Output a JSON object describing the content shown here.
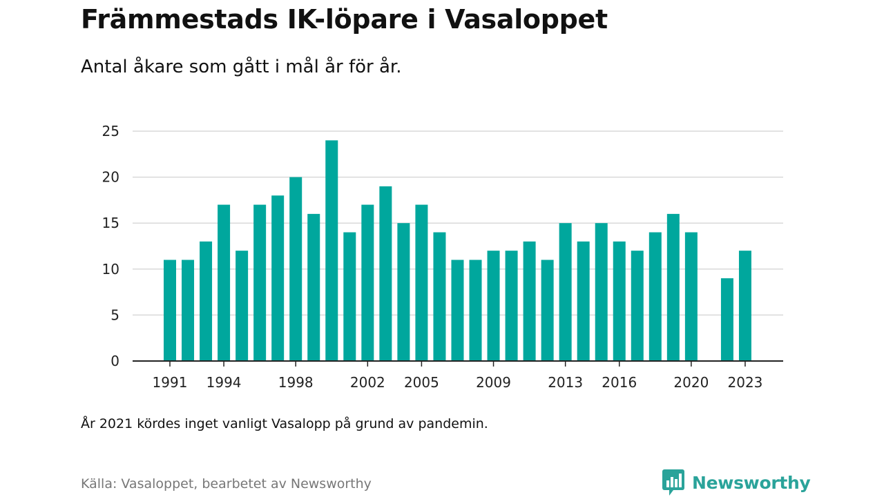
{
  "header": {
    "title": "Främmestads IK-löpare i Vasaloppet",
    "subtitle": "Antal åkare som gått i mål år för år."
  },
  "footer": {
    "footnote": "År 2021 kördes inget vanligt Vasalopp på grund av pandemin.",
    "source": "Källa: Vasaloppet, bearbetet av Newsworthy",
    "brand": "Newsworthy"
  },
  "colors": {
    "bar": "#00a79d",
    "grid": "#d9d9d9",
    "axis": "#222222",
    "brand": "#2aa39a"
  },
  "chart_data": {
    "type": "bar",
    "title": "Främmestads IK-löpare i Vasaloppet",
    "subtitle": "Antal åkare som gått i mål år för år.",
    "xlabel": "",
    "ylabel": "",
    "categories": [
      1991,
      1992,
      1993,
      1994,
      1995,
      1996,
      1997,
      1998,
      1999,
      2000,
      2001,
      2002,
      2003,
      2004,
      2005,
      2006,
      2007,
      2008,
      2009,
      2010,
      2011,
      2012,
      2013,
      2014,
      2015,
      2016,
      2017,
      2018,
      2019,
      2020,
      2021,
      2022,
      2023
    ],
    "values": [
      11,
      11,
      13,
      17,
      12,
      17,
      18,
      20,
      16,
      24,
      14,
      17,
      19,
      15,
      17,
      14,
      11,
      11,
      12,
      12,
      13,
      11,
      15,
      13,
      15,
      13,
      12,
      14,
      16,
      14,
      null,
      9,
      12
    ],
    "x_tick_labels": [
      "1991",
      "1994",
      "1998",
      "2002",
      "2005",
      "2009",
      "2013",
      "2016",
      "2020",
      "2023"
    ],
    "y_ticks": [
      0,
      5,
      10,
      15,
      20,
      25
    ],
    "ylim": [
      0,
      25
    ],
    "grid": true,
    "legend": "none"
  }
}
